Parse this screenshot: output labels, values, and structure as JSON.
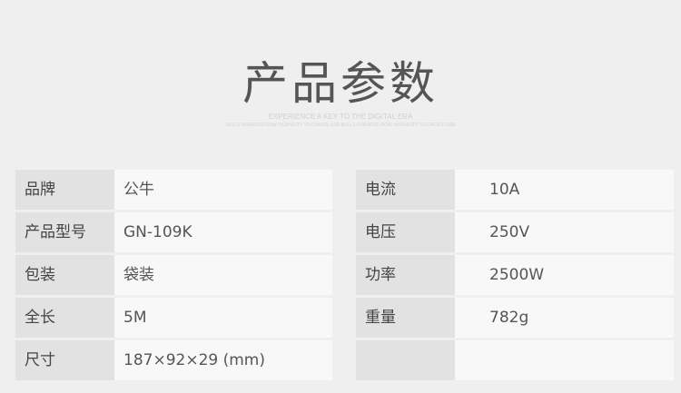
{
  "title": "产品参数",
  "subtitle": "EXPERIENCE A KEY TO THE DIGITAL ERA",
  "subtitle_small": "BULLS INSERTED ROW INGENUITY TO CREATE USB BULLS INSERTED ROW INGENUITY TO CREATE USB",
  "left": [
    {
      "label": "品牌",
      "value": "公牛"
    },
    {
      "label": "产品型号",
      "value": "GN-109K"
    },
    {
      "label": "包装",
      "value": "袋装"
    },
    {
      "label": "全长",
      "value": "5M"
    },
    {
      "label": "尺寸",
      "value": "187×92×29 (mm)"
    }
  ],
  "right": [
    {
      "label": "电流",
      "value": "10A"
    },
    {
      "label": "电压",
      "value": "250V"
    },
    {
      "label": "功率",
      "value": "2500W"
    },
    {
      "label": "重量",
      "value": "782g"
    },
    {
      "label": "",
      "value": ""
    }
  ]
}
